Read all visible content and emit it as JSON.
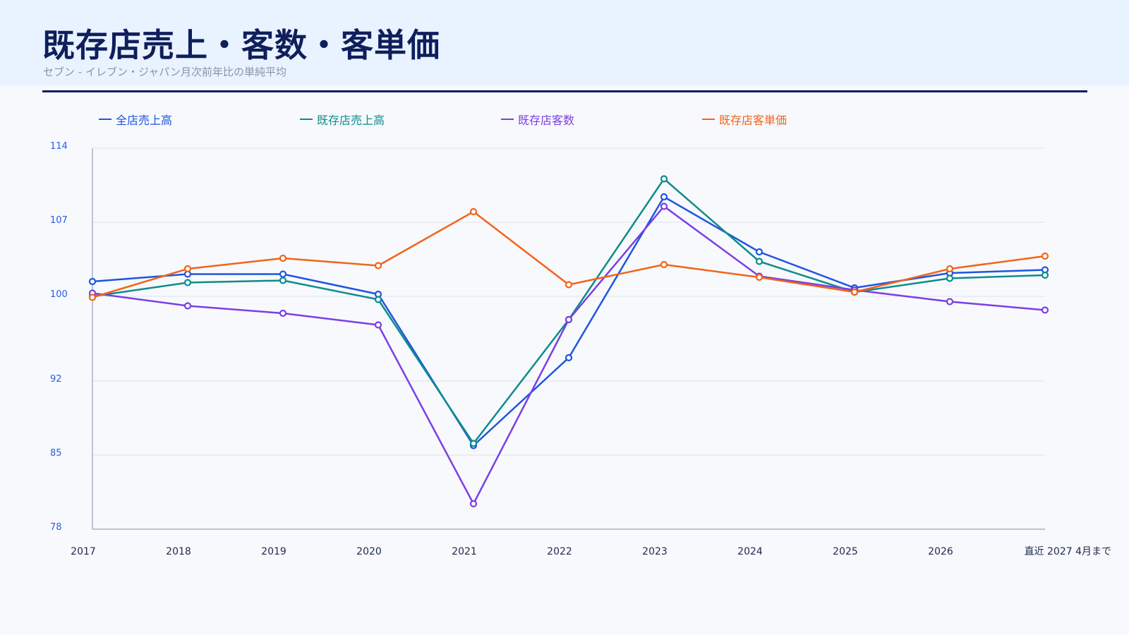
{
  "page": {
    "title": "既存店売上・客数・客単価",
    "subtitle": "セブン - イレブン・ジャパン月次前年比の単純平均"
  },
  "colors": {
    "title": "#0f1f5c",
    "header_bg": "#e9f2ff",
    "axis_tick": "#2d5be3",
    "grid": "#dde3ec",
    "axis_line": "#a9b4c6"
  },
  "chart_data": {
    "type": "line",
    "categories": [
      "2017",
      "2018",
      "2019",
      "2020",
      "2021",
      "2022",
      "2023",
      "2024",
      "2025",
      "2026",
      "直近 2027 4月まで"
    ],
    "ylim": [
      78,
      114
    ],
    "yticks": [
      78,
      85,
      92,
      100,
      107,
      114
    ],
    "grid": true,
    "legend_position": "top",
    "series": [
      {
        "name": "全店売上高",
        "color": "#1f55e0",
        "values": [
          101.4,
          102.1,
          102.1,
          100.2,
          85.9,
          94.2,
          109.4,
          104.2,
          100.8,
          102.2,
          102.5
        ]
      },
      {
        "name": "既存店売上高",
        "color": "#0e8c8c",
        "values": [
          100.0,
          101.3,
          101.5,
          99.7,
          86.1,
          97.8,
          111.1,
          103.3,
          100.4,
          101.7,
          102.0
        ]
      },
      {
        "name": "既存店客数",
        "color": "#7b3fe4",
        "values": [
          100.3,
          99.1,
          98.4,
          97.3,
          80.4,
          97.8,
          108.5,
          101.9,
          100.6,
          99.5,
          98.7
        ]
      },
      {
        "name": "既存店客単価",
        "color": "#f26419",
        "values": [
          99.9,
          102.6,
          103.6,
          102.9,
          108.0,
          101.1,
          103.0,
          101.8,
          100.4,
          102.6,
          103.8
        ]
      }
    ]
  }
}
